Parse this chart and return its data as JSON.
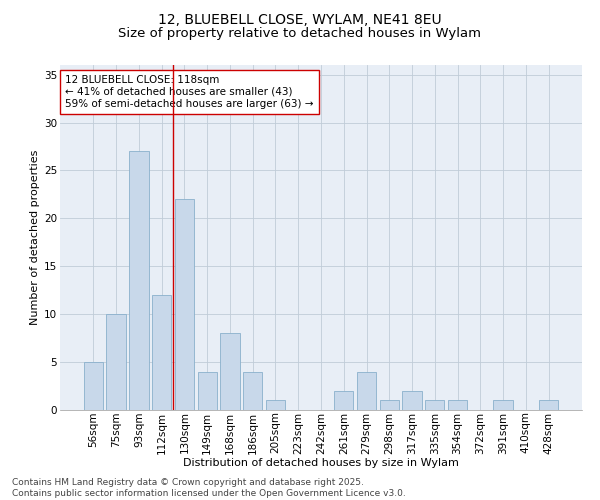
{
  "title_line1": "12, BLUEBELL CLOSE, WYLAM, NE41 8EU",
  "title_line2": "Size of property relative to detached houses in Wylam",
  "xlabel": "Distribution of detached houses by size in Wylam",
  "ylabel": "Number of detached properties",
  "bar_color": "#c8d8ea",
  "bar_edge_color": "#8ab0cc",
  "background_color": "#e8eef6",
  "grid_color": "#c0ccd8",
  "annotation_line_color": "#cc0000",
  "categories": [
    "56sqm",
    "75sqm",
    "93sqm",
    "112sqm",
    "130sqm",
    "149sqm",
    "168sqm",
    "186sqm",
    "205sqm",
    "223sqm",
    "242sqm",
    "261sqm",
    "279sqm",
    "298sqm",
    "317sqm",
    "335sqm",
    "354sqm",
    "372sqm",
    "391sqm",
    "410sqm",
    "428sqm"
  ],
  "values": [
    5,
    10,
    27,
    12,
    22,
    4,
    8,
    4,
    1,
    0,
    0,
    2,
    4,
    1,
    2,
    1,
    1,
    0,
    1,
    0,
    1
  ],
  "annotation_text": "12 BLUEBELL CLOSE: 118sqm\n← 41% of detached houses are smaller (43)\n59% of semi-detached houses are larger (63) →",
  "vline_x_index": 3,
  "ylim": [
    0,
    36
  ],
  "yticks": [
    0,
    5,
    10,
    15,
    20,
    25,
    30,
    35
  ],
  "footnote": "Contains HM Land Registry data © Crown copyright and database right 2025.\nContains public sector information licensed under the Open Government Licence v3.0.",
  "title_fontsize": 10,
  "subtitle_fontsize": 9.5,
  "axis_label_fontsize": 8,
  "tick_fontsize": 7.5,
  "annotation_fontsize": 7.5,
  "footnote_fontsize": 6.5
}
